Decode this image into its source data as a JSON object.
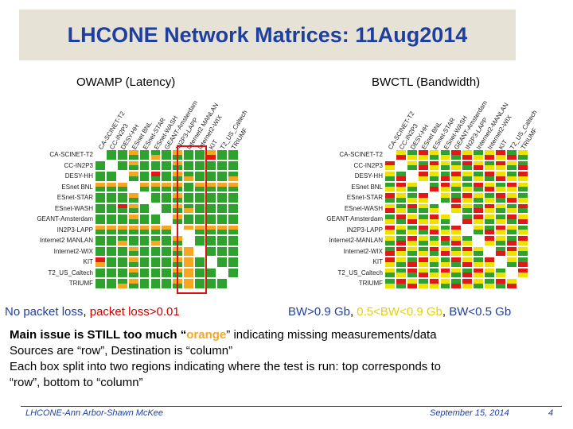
{
  "title": "LHCONE Network Matrices: 11Aug2014",
  "left_subtitle": "OWAMP  (Latency)",
  "right_subtitle": "BWCTL  (Bandwidth)",
  "left_matrix": {
    "rows": [
      "CA-SCINET-T2",
      "CC-IN2P3",
      "DESY-HH",
      "ESnet BNL",
      "ESnet-STAR",
      "ESnet-WASH",
      "GEANT-Amsterdam",
      "IN2P3-LAPP",
      "Internet2 MANLAN",
      "Internet2-WIX",
      "KIT",
      "T2_US_Caltech",
      "TRIUMF"
    ],
    "cols": [
      "CA-SCINET-T2",
      "CC-IN2P3",
      "DESY-HH",
      "ESnet BNL",
      "ESnet-STAR",
      "ESnet-WASH",
      "GEANT-Amsterdam",
      "IN2P3-LAPP",
      "Internet2 MANLAN",
      "Internet2-WIX",
      "KIT",
      "T2_US_Caltech",
      "TRIUMF"
    ],
    "grid": [
      [
        "",
        "GG",
        "GG",
        "OG",
        "GG",
        "GO",
        "GG",
        "OG",
        "GG",
        "GG",
        "OR",
        "GG",
        "GG"
      ],
      [
        "GG",
        "",
        "GG",
        "OG",
        "GG",
        "GG",
        "GG",
        "OG",
        "GG",
        "GG",
        "GG",
        "GG",
        "GG"
      ],
      [
        "GG",
        "GG",
        "",
        "OG",
        "GG",
        "RG",
        "GG",
        "OG",
        "GO",
        "GG",
        "GG",
        "GG",
        "GO"
      ],
      [
        "OG",
        "OG",
        "OG",
        "",
        "OG",
        "OG",
        "OG",
        "OG",
        "GG",
        "OG",
        "OG",
        "OG",
        "OG"
      ],
      [
        "GG",
        "GG",
        "GG",
        "OG",
        "",
        "GG",
        "GG",
        "OG",
        "GG",
        "GG",
        "GG",
        "GG",
        "GG"
      ],
      [
        "GG",
        "GG",
        "RG",
        "OG",
        "GG",
        "",
        "GG",
        "OG",
        "GO",
        "GG",
        "GG",
        "GG",
        "GG"
      ],
      [
        "GG",
        "GG",
        "GG",
        "OG",
        "GG",
        "GG",
        "",
        "OG",
        "GG",
        "GG",
        "GG",
        "GG",
        "GG"
      ],
      [
        "OG",
        "OG",
        "OG",
        "OG",
        "OG",
        "OG",
        "OG",
        "",
        "OW",
        "OG",
        "OG",
        "OG",
        "OG"
      ],
      [
        "GG",
        "GG",
        "GO",
        "GG",
        "GG",
        "GO",
        "GG",
        "OG",
        "",
        "GG",
        "GG",
        "GG",
        "GG"
      ],
      [
        "GG",
        "GG",
        "GG",
        "OG",
        "GG",
        "GG",
        "GG",
        "OG",
        "OO",
        "",
        "GG",
        "GG",
        "GG"
      ],
      [
        "RO",
        "GG",
        "GG",
        "OG",
        "GG",
        "GG",
        "GG",
        "OG",
        "OO",
        "GG",
        "",
        "GG",
        "GG"
      ],
      [
        "GG",
        "GG",
        "GG",
        "OG",
        "GG",
        "GG",
        "GG",
        "OG",
        "OO",
        "GG",
        "GG",
        "",
        "GG"
      ],
      [
        "GG",
        "GG",
        "GO",
        "OG",
        "GG",
        "GG",
        "GG",
        "OG",
        "OO",
        "GG",
        "GG",
        "GG",
        ""
      ]
    ]
  },
  "right_matrix": {
    "rows": [
      "CA-SCINET-T2",
      "CC-IN2P3",
      "DESY-HH",
      "ESnet BNL",
      "ESnet-STAR",
      "ESnet-WASH",
      "GEANT-Amsterdam",
      "IN2P3-LAPP",
      "Internet2-MANLAN",
      "Internet2-WIX",
      "KIT",
      "T2_US_Caltech",
      "TRIUMF"
    ],
    "cols": [
      "CA-SCINET-T2",
      "CC-IN2P3",
      "DESY-HH",
      "ESnet BNL",
      "ESnet-STAR",
      "ESnet-WASH",
      "GEANT-Amsterdam",
      "IN2P3-LAPP",
      "Internet2-MANLAN",
      "Internet2-WIX",
      "KIT",
      "T2_US_Caltech",
      "TRIUMF"
    ],
    "grid": [
      [
        "",
        "YR",
        "GY",
        "RY",
        "YG",
        "GY",
        "RG",
        "YR",
        "GY",
        "YR",
        "RY",
        "GR",
        "YG"
      ],
      [
        "RY",
        "",
        "YG",
        "GR",
        "RY",
        "YG",
        "GY",
        "RG",
        "YR",
        "GY",
        "RY",
        "YG",
        "GR"
      ],
      [
        "YG",
        "GR",
        "",
        "RY",
        "YG",
        "GR",
        "RY",
        "YG",
        "GY",
        "RG",
        "YR",
        "GY",
        "RY"
      ],
      [
        "GY",
        "RY",
        "YG",
        "",
        "GR",
        "RY",
        "YG",
        "GY",
        "RG",
        "YR",
        "GY",
        "RY",
        "YG"
      ],
      [
        "RG",
        "YG",
        "GY",
        "RY",
        "",
        "YG",
        "GR",
        "RY",
        "YG",
        "GY",
        "RG",
        "YR",
        "GY"
      ],
      [
        "YR",
        "GY",
        "RG",
        "YG",
        "GY",
        "",
        "RY",
        "YG",
        "GR",
        "RY",
        "YG",
        "GY",
        "RG"
      ],
      [
        "GY",
        "RG",
        "YR",
        "GY",
        "RY",
        "YG",
        "",
        "GR",
        "RY",
        "YG",
        "GY",
        "RG",
        "YR"
      ],
      [
        "RY",
        "YG",
        "GY",
        "RG",
        "YR",
        "GY",
        "RY",
        "",
        "YG",
        "GR",
        "RY",
        "YG",
        "GY"
      ],
      [
        "YG",
        "GR",
        "RY",
        "YG",
        "GY",
        "RG",
        "YR",
        "GY",
        "",
        "RY",
        "YG",
        "GR",
        "RY"
      ],
      [
        "GR",
        "RY",
        "YG",
        "GY",
        "RG",
        "YR",
        "GY",
        "RY",
        "YG",
        "",
        "GR",
        "RY",
        "YG"
      ],
      [
        "RY",
        "YG",
        "GR",
        "RY",
        "YG",
        "GY",
        "RG",
        "YR",
        "GY",
        "RY",
        "",
        "YG",
        "GR"
      ],
      [
        "YG",
        "GY",
        "RG",
        "YR",
        "GY",
        "RY",
        "YG",
        "GR",
        "RY",
        "YG",
        "GY",
        "",
        "RY"
      ],
      [
        "GY",
        "RG",
        "YR",
        "GY",
        "RY",
        "YG",
        "GR",
        "RY",
        "YG",
        "GY",
        "RG",
        "YR",
        ""
      ]
    ]
  },
  "colors": {
    "G": "#2ea12e",
    "O": "#f5a623",
    "R": "#e01818",
    "Y": "#eee300",
    "W": "#ffffff",
    "diag": "#ffffff"
  },
  "legend_left": {
    "a": "No packet loss",
    "sep": ", ",
    "b": "packet loss>0.01"
  },
  "legend_right": {
    "a": "BW>0.9 Gb",
    "sep1": ", ",
    "b": "0.5<BW<0.9 Gb",
    "sep2": ",  ",
    "c": "BW<0.5  Gb"
  },
  "body": {
    "line1_a": "Main issue is STILL too much “",
    "line1_b": "orange",
    "line1_c": "”  indicating missing measurements/data",
    "line2": "Sources are “row”, Destination is “column”",
    "line3": "Each box split into two regions indicating where the test is run: top corresponds to",
    "line4": "“row”, bottom to “column”"
  },
  "footer": {
    "left": "LHCONE-Ann Arbor-Shawn McKee",
    "date": "September 15, 2014",
    "page": "4"
  }
}
